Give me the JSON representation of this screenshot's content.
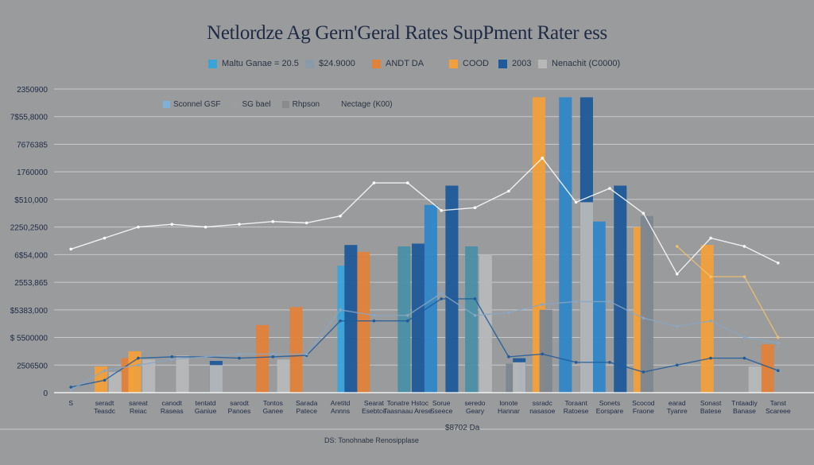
{
  "chart_data": {
    "type": "bar",
    "title": "Netlordze Ag Gern'Geral Rates SupPment Rater ess",
    "y_ticks": [
      "0",
      "2506500",
      "$ 5500000",
      "$5383,000",
      "2553,865",
      "6$54,000",
      "2250,2500",
      "$510,000",
      "1760000",
      "7676385",
      "7$55,8000",
      "2350900"
    ],
    "ylim": [
      0,
      11
    ],
    "legend": [
      {
        "label": "Maltu Ganae = 20.5",
        "color": "#3aa3d8"
      },
      {
        "label": "$24.9000",
        "color": "#8a9aa8"
      },
      {
        "label": "ANDT DA",
        "color": "#e0823a"
      },
      {
        "label": "COOD",
        "color": "#f2a03c"
      },
      {
        "label": "2003",
        "color": "#1f5a9a"
      },
      {
        "label": "Nenachit (C0000)",
        "color": "#b8b8b8"
      }
    ],
    "sublegend": [
      {
        "label": "Sconnel GSF",
        "color": "#7fb0d8"
      },
      {
        "label": "SG bael",
        "color": "#9c9c9c"
      },
      {
        "label": "Rhpson",
        "color": "#8a8a8a"
      },
      {
        "label": "Nectage (K00)",
        "color": "#9a9b9d"
      }
    ],
    "x_labels": [
      "S",
      "seradt\nTeasdc",
      "sareat\nReiac",
      "canodt\nRaseas",
      "tentatd\nGaniue",
      "sarodt\nPanoes",
      "Tontos\nGanee",
      "Sarada\nPatece",
      "Aretitd\nAnnns",
      "Searat\nEsebtce",
      "Tonatre Hstoc\nTaasnaau Arese",
      "Sorue\nSseece",
      "seredo\nGeary",
      "lonote\nHannar",
      "ssradc\nnasasoe",
      "Toraant\nRatoese",
      "Sonets\nEorspare",
      "Scocod\nFraone",
      "earad\nTyanre",
      "Sonast\nBatese",
      "Tntaadiy\nBanase",
      "Tanst\nScareee"
    ],
    "series": [
      {
        "color": "#e0823a",
        "values": [
          0,
          0,
          1.25,
          0,
          0,
          0,
          2.45,
          3.1,
          0,
          5.1,
          0,
          0,
          0,
          0,
          0,
          0,
          0,
          0,
          0,
          0,
          0,
          1.75
        ]
      },
      {
        "color": "#f2a03c",
        "values": [
          0,
          0.95,
          1.5,
          0,
          0,
          0,
          0,
          0,
          0,
          0,
          0,
          0,
          0,
          0,
          10.7,
          0,
          0,
          6.0,
          0,
          5.35,
          0,
          0
        ]
      },
      {
        "color": "#3aa3d8",
        "values": [
          0,
          0,
          0,
          0,
          0,
          0,
          0,
          0,
          4.6,
          0,
          0,
          0,
          0,
          0,
          0,
          0,
          0,
          0,
          0,
          0,
          0,
          0
        ]
      },
      {
        "color": "#1f5a9a",
        "values": [
          0,
          0,
          0,
          0,
          1.15,
          0,
          0,
          0,
          5.35,
          0,
          5.4,
          7.5,
          0,
          1.25,
          0,
          10.7,
          7.5,
          0,
          0,
          0,
          0,
          0
        ]
      },
      {
        "color": "#2f86c8",
        "values": [
          0,
          0,
          0,
          0,
          0,
          0,
          0,
          0,
          0,
          0,
          0,
          6.8,
          0,
          0,
          0,
          10.7,
          6.2,
          0,
          0,
          0,
          0,
          0
        ]
      },
      {
        "color": "#4a8fa6",
        "values": [
          0,
          0,
          0,
          0,
          0,
          0,
          0,
          0,
          0,
          0,
          5.3,
          0,
          5.3,
          0,
          0,
          0,
          0,
          0,
          0,
          0,
          0,
          0
        ]
      },
      {
        "color": "#7d8790",
        "values": [
          0,
          0,
          0,
          0,
          0,
          0,
          0,
          0,
          0,
          0,
          0,
          0,
          0,
          1.05,
          3.0,
          0,
          0,
          6.4,
          0,
          0,
          0,
          0
        ]
      },
      {
        "color": "#b6b8ba",
        "values": [
          0,
          0.75,
          1.2,
          1.35,
          1.0,
          0,
          1.2,
          0,
          0,
          0,
          0,
          0,
          5.0,
          1.1,
          0,
          6.9,
          0,
          0,
          0,
          0,
          0.95,
          0
        ]
      }
    ],
    "line_series": [
      {
        "name": "",
        "color": "#1f5a9a",
        "values": [
          0.2,
          0.45,
          1.25,
          1.3,
          1.3,
          1.25,
          1.3,
          1.35,
          2.6,
          2.6,
          2.6,
          3.4,
          3.4,
          1.3,
          1.4,
          1.1,
          1.1,
          0.75,
          1.0,
          1.25,
          1.25,
          0.8
        ]
      },
      {
        "name": "",
        "color": "#ffffff",
        "values": [
          5.2,
          5.6,
          6.0,
          6.1,
          6.0,
          6.1,
          6.2,
          6.15,
          6.4,
          7.6,
          7.6,
          6.6,
          6.7,
          7.3,
          8.5,
          6.9,
          7.4,
          6.5,
          4.3,
          5.6,
          5.3,
          4.7
        ]
      },
      {
        "name": "",
        "color": "#8aa6c2",
        "values": [
          0.1,
          0.8,
          1.0,
          1.2,
          1.3,
          1.4,
          1.4,
          1.4,
          3.0,
          2.8,
          2.8,
          3.6,
          2.8,
          2.9,
          3.2,
          3.3,
          3.3,
          2.7,
          2.4,
          2.6,
          2.0,
          1.8
        ]
      },
      {
        "name": "",
        "color": "#f0c070",
        "values": [
          0,
          0,
          0,
          0,
          0,
          0,
          0,
          0,
          0,
          0,
          0,
          0,
          0,
          0,
          0,
          0,
          0,
          0,
          5.3,
          4.2,
          4.2,
          2.0
        ]
      }
    ],
    "footnote": "$8702 Da",
    "footnote2": "DS: Tonohnabe Renosipplase"
  }
}
